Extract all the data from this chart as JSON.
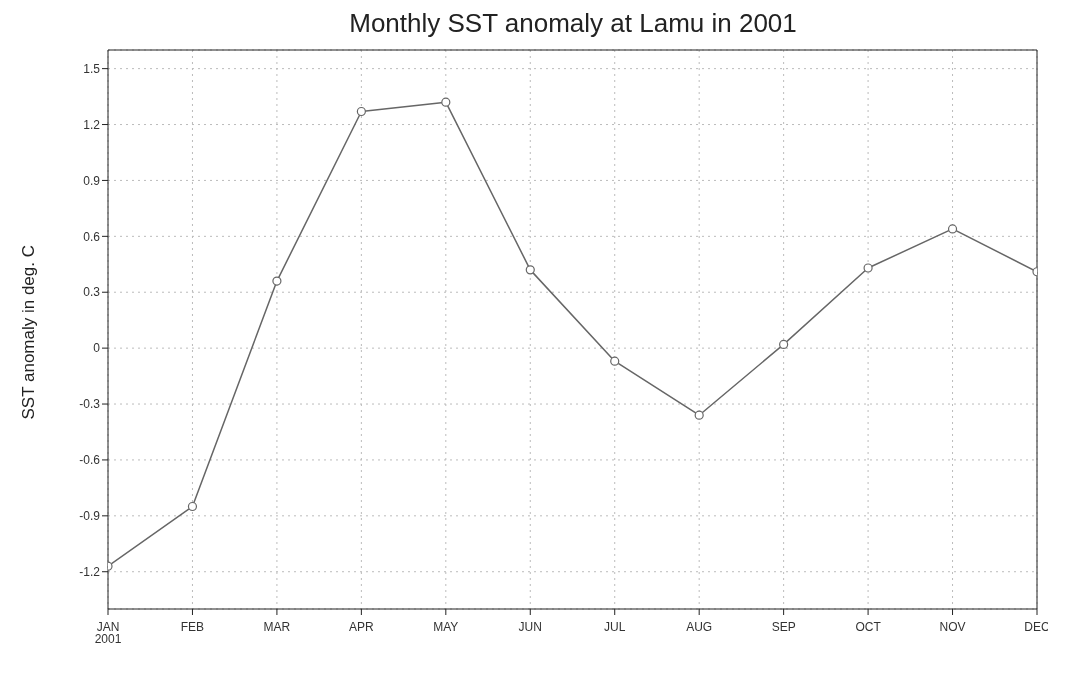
{
  "chart_data": {
    "type": "line",
    "title": "Monthly SST anomaly at Lamu in 2001",
    "ylabel": "SST anomaly in deg. C",
    "categories": [
      "JAN\n2001",
      "FEB",
      "MAR",
      "APR",
      "MAY",
      "JUN",
      "JUL",
      "AUG",
      "SEP",
      "OCT",
      "NOV",
      "DEC"
    ],
    "series": [
      {
        "color": "#666666",
        "values": [
          -1.17,
          -0.85,
          0.36,
          1.27,
          1.32,
          0.42,
          -0.07,
          -0.36,
          0.02,
          0.43,
          0.64,
          0.41
        ]
      }
    ],
    "ylim": [
      -1.4,
      1.6
    ],
    "yticks": [
      -1.2,
      -0.9,
      -0.6,
      -0.3,
      0,
      0.3,
      0.6,
      0.9,
      1.2,
      1.5
    ],
    "grid": true,
    "marker": "circle",
    "line_style": "solid",
    "legend": false
  }
}
